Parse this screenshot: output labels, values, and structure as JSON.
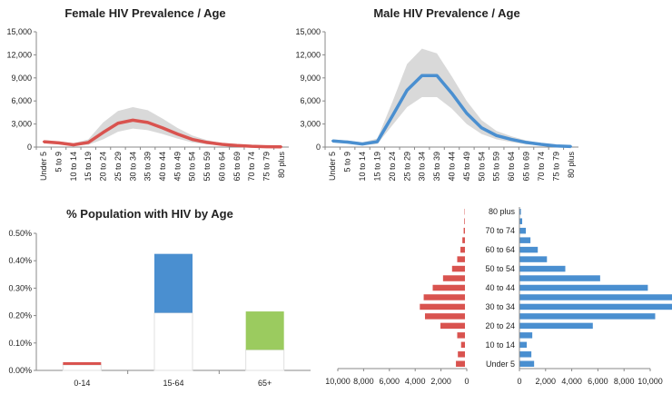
{
  "chart_data": [
    {
      "type": "line",
      "title": "Female HIV Prevalence / Age",
      "categories": [
        "Under 5",
        "5 to 9",
        "10 to 14",
        "15 to 19",
        "20 to 24",
        "25 to 29",
        "30 to 34",
        "35 to 39",
        "40 to 44",
        "45 to 49",
        "50 to 54",
        "55 to 59",
        "60 to 64",
        "65 to 69",
        "70 to 74",
        "75 to 79",
        "80 plus"
      ],
      "ylim": [
        0,
        15000
      ],
      "yticks": [
        "0",
        "3,000",
        "6,000",
        "9,000",
        "12,000",
        "15,000"
      ],
      "yticks_values": [
        0,
        3000,
        6000,
        9000,
        12000,
        15000
      ],
      "series": [
        {
          "role": "estimate",
          "color": "#d9534f",
          "values": [
            700,
            550,
            300,
            600,
            1900,
            3100,
            3500,
            3200,
            2500,
            1700,
            1000,
            600,
            350,
            200,
            100,
            50,
            30
          ]
        },
        {
          "role": "upper bound",
          "color": "#d9d9d9",
          "values": [
            900,
            750,
            500,
            1000,
            3200,
            4700,
            5200,
            4800,
            3700,
            2500,
            1500,
            900,
            500,
            300,
            150,
            80,
            50
          ]
        },
        {
          "role": "lower bound",
          "color": "#d9d9d9",
          "values": [
            500,
            400,
            200,
            300,
            1000,
            2000,
            2400,
            2200,
            1700,
            1100,
            600,
            350,
            200,
            100,
            50,
            25,
            10
          ]
        }
      ]
    },
    {
      "type": "line",
      "title": "Male HIV Prevalence / Age",
      "categories": [
        "Under 5",
        "5 to 9",
        "10 to 14",
        "15 to 19",
        "20 to 24",
        "25 to 29",
        "30 to 34",
        "35 to 39",
        "40 to 44",
        "45 to 49",
        "50 to 54",
        "55 to 59",
        "60 to 64",
        "65 to 69",
        "70 to 74",
        "75 to 79",
        "80 plus"
      ],
      "ylim": [
        0,
        15000
      ],
      "yticks": [
        "0",
        "3,000",
        "6,000",
        "9,000",
        "12,000",
        "15,000"
      ],
      "yticks_values": [
        0,
        3000,
        6000,
        9000,
        12000,
        15000
      ],
      "series": [
        {
          "role": "estimate",
          "color": "#4a8fd0",
          "values": [
            800,
            650,
            400,
            700,
            4000,
            7400,
            9300,
            9300,
            7000,
            4400,
            2500,
            1500,
            1000,
            600,
            350,
            150,
            80
          ]
        },
        {
          "role": "upper bound",
          "color": "#d9d9d9",
          "values": [
            1000,
            850,
            600,
            1100,
            5800,
            10800,
            12800,
            12200,
            9200,
            6000,
            3500,
            2100,
            1400,
            850,
            500,
            250,
            120
          ]
        },
        {
          "role": "lower bound",
          "color": "#d9d9d9",
          "values": [
            600,
            450,
            250,
            400,
            2800,
            5200,
            6500,
            6500,
            5000,
            3000,
            1700,
            1000,
            650,
            350,
            200,
            80,
            40
          ]
        }
      ]
    },
    {
      "type": "bar",
      "title": "% Population with HIV by Age",
      "categories": [
        "0-14",
        "15-64",
        "65+"
      ],
      "ylim": [
        0,
        0.5
      ],
      "yticks": [
        "0.00%",
        "0.10%",
        "0.20%",
        "0.30%",
        "0.40%",
        "0.50%"
      ],
      "yticks_values": [
        0,
        0.1,
        0.2,
        0.3,
        0.4,
        0.5
      ],
      "series": [
        {
          "role": "low",
          "values": [
            0.02,
            0.21,
            0.075
          ]
        },
        {
          "role": "high",
          "values": [
            0.03,
            0.425,
            0.215
          ]
        }
      ],
      "colors": [
        "#d9534f",
        "#4a8fd0",
        "#9bcb5f"
      ]
    },
    {
      "type": "bar",
      "subtype": "population pyramid",
      "categories": [
        "Under 5",
        "5 to 9",
        "10 to 14",
        "15 to 19",
        "20 to 24",
        "25 to 29",
        "30 to 34",
        "35 to 39",
        "40 to 44",
        "45 to 49",
        "50 to 54",
        "55 to 59",
        "60 to 64",
        "65 to 69",
        "70 to 74",
        "75 to 79",
        "80 plus"
      ],
      "category_labels_shown": [
        "Under 5",
        "10 to 14",
        "20 to 24",
        "30 to 34",
        "40 to 44",
        "50 to 54",
        "60 to 64",
        "70 to 74",
        "80 plus"
      ],
      "left_ticks": [
        "10,000",
        "8,000",
        "6,000",
        "4,000",
        "2,000",
        "0"
      ],
      "right_ticks": [
        "0",
        "2,000",
        "4,000",
        "6,000",
        "8,000",
        "10,000"
      ],
      "xlim": [
        -10000,
        10000
      ],
      "series": [
        {
          "side": "left",
          "color": "#d9534f",
          "values": [
            700,
            550,
            300,
            600,
            1900,
            3100,
            3500,
            3200,
            2500,
            1700,
            1000,
            600,
            350,
            200,
            100,
            50,
            30
          ]
        },
        {
          "side": "right",
          "color": "#4a8fd0",
          "values": [
            800,
            650,
            400,
            700,
            4000,
            7400,
            9300,
            9300,
            7000,
            4400,
            2500,
            1500,
            1000,
            600,
            350,
            150,
            80
          ]
        }
      ]
    }
  ]
}
